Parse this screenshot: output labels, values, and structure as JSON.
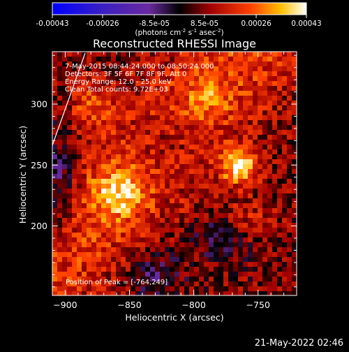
{
  "colorbar": {
    "ticks": [
      "-0.00043",
      "-0.00026",
      "-8.5e-05",
      "8.5e-05",
      "0.00026",
      "0.00043"
    ],
    "units_prefix": "(photons cm",
    "units_sup1": "-2",
    "units_mid": " s",
    "units_sup2": "-1",
    "units_mid2": " asec",
    "units_sup3": "-2",
    "units_suffix": ")",
    "range": [
      -0.00043,
      0.00043
    ]
  },
  "chart_data": {
    "type": "heatmap",
    "title": "Reconstructed RHESSI Image",
    "xlabel": "Heliocentric X (arcsec)",
    "ylabel": "Heliocentric Y (arcsec)",
    "xlim": [
      -910,
      -720
    ],
    "ylim": [
      143,
      343
    ],
    "x_ticks": [
      -900,
      -850,
      -800,
      -750
    ],
    "y_ticks": [
      200,
      250,
      300
    ],
    "annotations": [
      "7-May-2015 08:44:24.000 to 08:50:24.000",
      "Detectors: 3F 5F 6F 7F 8F 9F, Att 0",
      "Energy Range: 12.0 - 25.0 keV",
      "Clean    Total counts: 9.72E+03"
    ],
    "peak_label": "Position of Peak = [-764,249]",
    "peak": [
      -764,
      249
    ],
    "colormap": "blue-purple-black-red-yellow-white",
    "limb_line": true
  },
  "footer": {
    "timestamp": "21-May-2022 02:46"
  }
}
